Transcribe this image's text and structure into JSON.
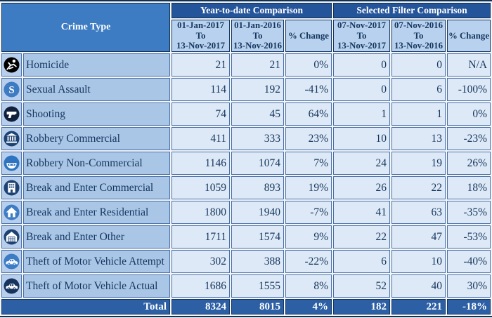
{
  "table": {
    "corner_header": "Crime Type",
    "groups": [
      {
        "label": "Year-to-date Comparison"
      },
      {
        "label": "Selected Filter Comparison"
      }
    ],
    "columns": [
      {
        "label": "01-Jan-2017\nTo\n13-Nov-2017"
      },
      {
        "label": "01-Jan-2016\nTo\n13-Nov-2016"
      },
      {
        "label": "% Change"
      },
      {
        "label": "07-Nov-2017\nTo\n13-Nov-2017"
      },
      {
        "label": "07-Nov-2016\nTo\n13-Nov-2016"
      },
      {
        "label": "% Change"
      }
    ],
    "rows": [
      {
        "icon": "homicide-icon",
        "icon_color": "#000000",
        "label": "Homicide",
        "values": [
          "21",
          "21",
          "0%",
          "0",
          "0",
          "N/A"
        ]
      },
      {
        "icon": "sexual-assault-icon",
        "icon_color": "#3d7bc2",
        "label": "Sexual Assault",
        "values": [
          "114",
          "192",
          "-41%",
          "0",
          "6",
          "-100%"
        ]
      },
      {
        "icon": "shooting-icon",
        "icon_color": "#101f3a",
        "label": "Shooting",
        "values": [
          "74",
          "45",
          "64%",
          "1",
          "1",
          "0%"
        ]
      },
      {
        "icon": "robbery-commercial-icon",
        "icon_color": "#1d4272",
        "label": "Robbery Commercial",
        "values": [
          "411",
          "333",
          "23%",
          "10",
          "13",
          "-23%"
        ]
      },
      {
        "icon": "robbery-noncommercial-icon",
        "icon_color": "#2f74c0",
        "label": "Robbery Non-Commercial",
        "values": [
          "1146",
          "1074",
          "7%",
          "24",
          "19",
          "26%"
        ]
      },
      {
        "icon": "break-enter-commercial-icon",
        "icon_color": "#1d4272",
        "label": "Break and Enter Commercial",
        "values": [
          "1059",
          "893",
          "19%",
          "26",
          "22",
          "18%"
        ]
      },
      {
        "icon": "break-enter-residential-icon",
        "icon_color": "#3d7cc4",
        "label": "Break and Enter Residential",
        "values": [
          "1800",
          "1940",
          "-7%",
          "41",
          "63",
          "-35%"
        ]
      },
      {
        "icon": "break-enter-other-icon",
        "icon_color": "#1d4272",
        "label": "Break and Enter Other",
        "values": [
          "1711",
          "1574",
          "9%",
          "22",
          "47",
          "-53%"
        ]
      },
      {
        "icon": "theft-attempt-icon",
        "icon_color": "#3d7cc4",
        "label": "Theft of Motor Vehicle Attempt",
        "values": [
          "302",
          "388",
          "-22%",
          "6",
          "10",
          "-40%"
        ]
      },
      {
        "icon": "theft-actual-icon",
        "icon_color": "#16355e",
        "label": "Theft of Motor Vehicle Actual",
        "values": [
          "1686",
          "1555",
          "8%",
          "52",
          "40",
          "30%"
        ]
      }
    ],
    "total": {
      "label": "Total",
      "values": [
        "8324",
        "8015",
        "4%",
        "182",
        "221",
        "-18%"
      ]
    }
  },
  "colors": {
    "group_header_bg": "#24549a",
    "corner_header_bg": "#3d7cc2",
    "subheader_bg": "#b7d1ee",
    "label_bg": "#a9c6e6",
    "icon_cell_bg": "#b7cfec",
    "value_bg": "#dde9f6",
    "total_bg": "#2c5fa4",
    "text_dark": "#16365e",
    "border_dark": "#14304f",
    "border_light": "#4a6fa5"
  }
}
